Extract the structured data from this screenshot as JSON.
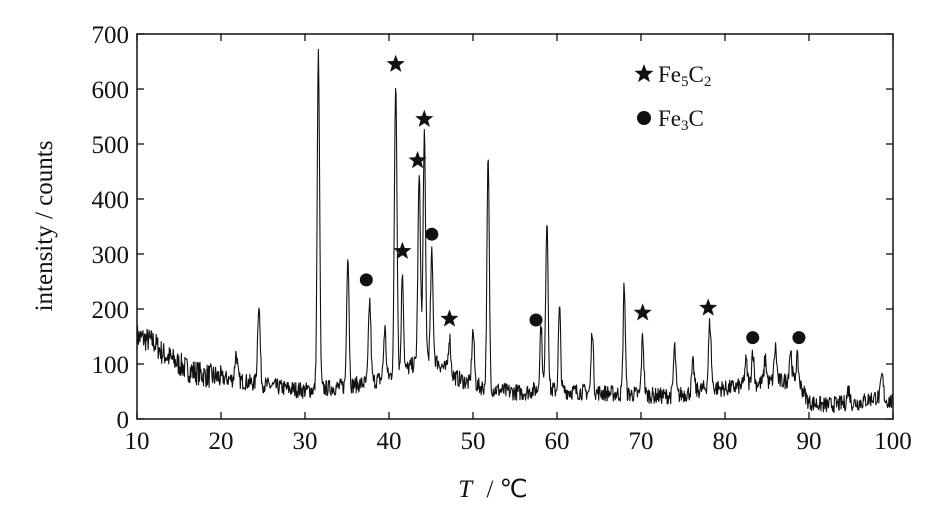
{
  "chart_data": {
    "type": "line",
    "title": "",
    "xlabel_italic": "T",
    "xlabel_unit": "/ ℃",
    "ylabel": "intensity / counts",
    "xlim": [
      10,
      100
    ],
    "ylim": [
      0,
      700
    ],
    "xticks": [
      10,
      20,
      30,
      40,
      50,
      60,
      70,
      80,
      90,
      100
    ],
    "yticks": [
      0,
      100,
      200,
      300,
      400,
      500,
      600,
      700
    ],
    "grid": false,
    "legend_position": "top-right",
    "line_color": "#111111",
    "legend": [
      {
        "marker": "star",
        "base": "Fe",
        "sub1": "5",
        "mid": "C",
        "sub2": "2"
      },
      {
        "marker": "circle",
        "base": "Fe",
        "sub1": "3",
        "mid": "C",
        "sub2": ""
      }
    ],
    "baseline_points": [
      [
        10,
        150
      ],
      [
        11,
        145
      ],
      [
        12,
        140
      ],
      [
        13,
        120
      ],
      [
        14,
        110
      ],
      [
        15,
        100
      ],
      [
        16,
        90
      ],
      [
        18,
        80
      ],
      [
        20,
        75
      ],
      [
        22,
        70
      ],
      [
        24,
        65
      ],
      [
        26,
        60
      ],
      [
        28,
        55
      ],
      [
        30,
        52
      ],
      [
        32,
        55
      ],
      [
        34,
        58
      ],
      [
        36,
        62
      ],
      [
        38,
        68
      ],
      [
        40,
        78
      ],
      [
        42,
        90
      ],
      [
        44,
        110
      ],
      [
        45,
        115
      ],
      [
        46,
        100
      ],
      [
        48,
        75
      ],
      [
        50,
        62
      ],
      [
        52,
        55
      ],
      [
        54,
        50
      ],
      [
        56,
        48
      ],
      [
        58,
        55
      ],
      [
        60,
        52
      ],
      [
        62,
        50
      ],
      [
        65,
        48
      ],
      [
        68,
        45
      ],
      [
        70,
        45
      ],
      [
        72,
        42
      ],
      [
        74,
        42
      ],
      [
        76,
        48
      ],
      [
        78,
        58
      ],
      [
        80,
        55
      ],
      [
        82,
        60
      ],
      [
        84,
        65
      ],
      [
        86,
        68
      ],
      [
        88,
        70
      ],
      [
        89,
        60
      ],
      [
        90,
        30
      ],
      [
        92,
        25
      ],
      [
        94,
        28
      ],
      [
        96,
        30
      ],
      [
        98,
        40
      ],
      [
        100,
        30
      ]
    ],
    "peaks": [
      {
        "x": 21.8,
        "y": 120,
        "w": 0.15
      },
      {
        "x": 24.5,
        "y": 210,
        "w": 0.15
      },
      {
        "x": 31.6,
        "y": 668,
        "w": 0.14
      },
      {
        "x": 35.1,
        "y": 305,
        "w": 0.14
      },
      {
        "x": 37.7,
        "y": 215,
        "w": 0.14
      },
      {
        "x": 39.5,
        "y": 165,
        "w": 0.14
      },
      {
        "x": 40.8,
        "y": 610,
        "w": 0.15
      },
      {
        "x": 41.6,
        "y": 270,
        "w": 0.13
      },
      {
        "x": 43.6,
        "y": 440,
        "w": 0.15
      },
      {
        "x": 44.2,
        "y": 520,
        "w": 0.14
      },
      {
        "x": 45.1,
        "y": 300,
        "w": 0.14
      },
      {
        "x": 47.2,
        "y": 150,
        "w": 0.14
      },
      {
        "x": 50.0,
        "y": 160,
        "w": 0.15
      },
      {
        "x": 51.8,
        "y": 470,
        "w": 0.14
      },
      {
        "x": 58.1,
        "y": 170,
        "w": 0.14
      },
      {
        "x": 58.8,
        "y": 365,
        "w": 0.14
      },
      {
        "x": 60.3,
        "y": 200,
        "w": 0.13
      },
      {
        "x": 64.2,
        "y": 165,
        "w": 0.13
      },
      {
        "x": 68.0,
        "y": 245,
        "w": 0.13
      },
      {
        "x": 70.2,
        "y": 150,
        "w": 0.14
      },
      {
        "x": 74.0,
        "y": 130,
        "w": 0.14
      },
      {
        "x": 76.2,
        "y": 100,
        "w": 0.15
      },
      {
        "x": 78.2,
        "y": 175,
        "w": 0.15
      },
      {
        "x": 82.5,
        "y": 105,
        "w": 0.15
      },
      {
        "x": 83.3,
        "y": 125,
        "w": 0.14
      },
      {
        "x": 84.8,
        "y": 110,
        "w": 0.14
      },
      {
        "x": 86.0,
        "y": 130,
        "w": 0.15
      },
      {
        "x": 87.8,
        "y": 125,
        "w": 0.15
      },
      {
        "x": 88.6,
        "y": 110,
        "w": 0.15
      },
      {
        "x": 94.7,
        "y": 55,
        "w": 0.15
      },
      {
        "x": 98.7,
        "y": 78,
        "w": 0.15
      }
    ],
    "markers": [
      {
        "type": "star",
        "x": 40.8,
        "y": 645
      },
      {
        "type": "star",
        "x": 44.2,
        "y": 545
      },
      {
        "type": "star",
        "x": 43.4,
        "y": 470
      },
      {
        "type": "star",
        "x": 41.6,
        "y": 305
      },
      {
        "type": "star",
        "x": 47.2,
        "y": 182
      },
      {
        "type": "star",
        "x": 70.2,
        "y": 193
      },
      {
        "type": "star",
        "x": 78.0,
        "y": 202
      },
      {
        "type": "circle",
        "x": 37.3,
        "y": 253
      },
      {
        "type": "circle",
        "x": 45.1,
        "y": 336
      },
      {
        "type": "circle",
        "x": 57.5,
        "y": 180
      },
      {
        "type": "circle",
        "x": 83.3,
        "y": 148
      },
      {
        "type": "circle",
        "x": 88.8,
        "y": 148
      }
    ]
  }
}
